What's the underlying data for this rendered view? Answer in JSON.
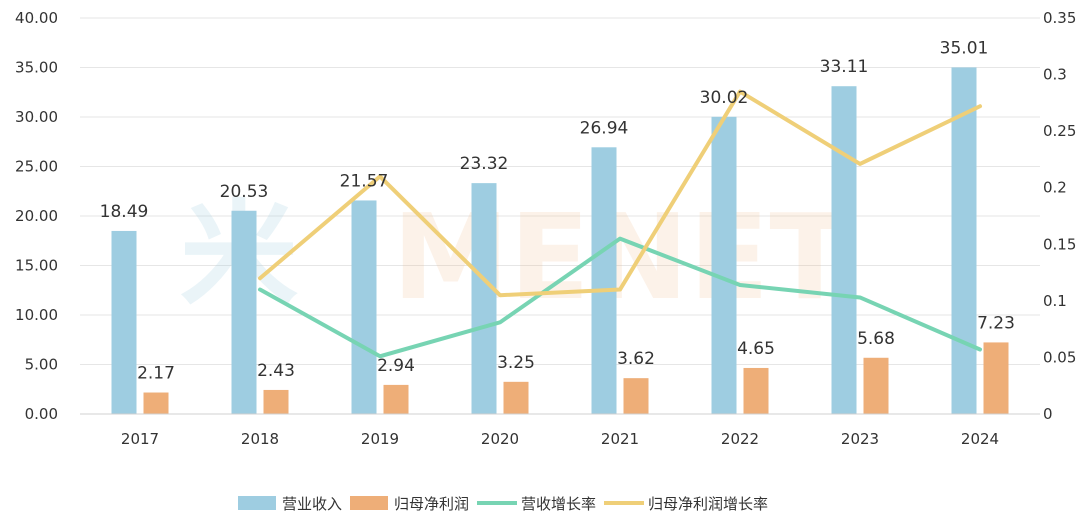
{
  "watermark": {
    "glyph": "米",
    "text": "MENET"
  },
  "colors": {
    "revenue_bar": "#9ecde1",
    "profit_bar": "#eeae78",
    "revenue_growth_line": "#77d4b3",
    "profit_growth_line": "#efcf78",
    "axis_text": "#333333",
    "gridline": "#e6e6e6"
  },
  "chart_data": {
    "type": "bar",
    "title": "",
    "categories": [
      "2017",
      "2018",
      "2019",
      "2020",
      "2021",
      "2022",
      "2023",
      "2024"
    ],
    "left_axis": {
      "min": 0,
      "max": 40,
      "step": 5,
      "tick_labels": [
        "0.00",
        "5.00",
        "10.00",
        "15.00",
        "20.00",
        "25.00",
        "30.00",
        "35.00",
        "40.00"
      ]
    },
    "right_axis": {
      "min": 0,
      "max": 0.35,
      "step": 0.05,
      "tick_labels": [
        "0",
        "0.05",
        "0.1",
        "0.15",
        "0.2",
        "0.25",
        "0.3",
        "0.35"
      ]
    },
    "gridlines": true,
    "legend_position": "bottom",
    "series": [
      {
        "name": "营业收入",
        "kind": "bar",
        "axis": "left",
        "values": [
          18.49,
          20.53,
          21.57,
          23.32,
          26.94,
          30.02,
          33.11,
          35.01
        ],
        "labels": [
          "18.49",
          "20.53",
          "21.57",
          "23.32",
          "26.94",
          "30.02",
          "33.11",
          "35.01"
        ]
      },
      {
        "name": "归母净利润",
        "kind": "bar",
        "axis": "left",
        "values": [
          2.17,
          2.43,
          2.94,
          3.25,
          3.62,
          4.65,
          5.68,
          7.23
        ],
        "labels": [
          "2.17",
          "2.43",
          "2.94",
          "3.25",
          "3.62",
          "4.65",
          "5.68",
          "7.23"
        ]
      },
      {
        "name": "营收增长率",
        "kind": "line",
        "axis": "right",
        "values": [
          null,
          0.11,
          0.051,
          0.081,
          0.155,
          0.114,
          0.103,
          0.057
        ]
      },
      {
        "name": "归母净利润增长率",
        "kind": "line",
        "axis": "right",
        "values": [
          null,
          0.12,
          0.21,
          0.105,
          0.11,
          0.285,
          0.221,
          0.272
        ]
      }
    ]
  }
}
